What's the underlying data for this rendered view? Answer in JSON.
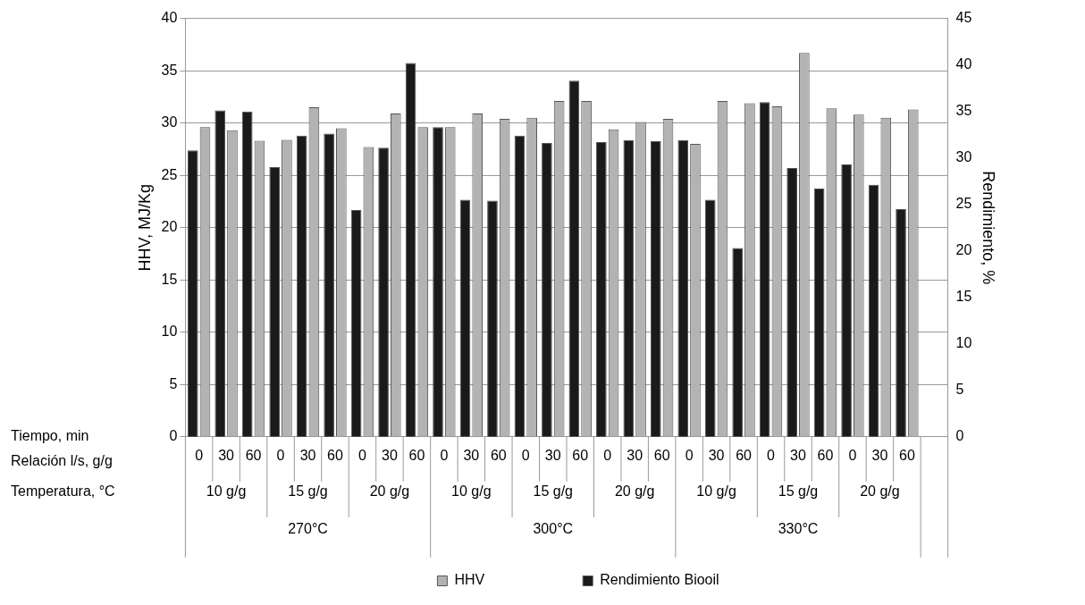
{
  "chart_data": {
    "type": "bar",
    "ylabel": "HHV, MJ/Kg",
    "y2label": "Rendimiento, %",
    "categories": [
      "0",
      "30",
      "60",
      "0",
      "30",
      "60",
      "0",
      "30",
      "60",
      "0",
      "30",
      "60",
      "0",
      "30",
      "60",
      "0",
      "30",
      "60",
      "0",
      "30",
      "60",
      "0",
      "30",
      "60",
      "0",
      "30",
      "60",
      null
    ],
    "series": [
      {
        "name": "HHV",
        "color": "#b3b3b3",
        "values": [
          29.6,
          29.3,
          28.3,
          28.4,
          31.5,
          29.5,
          27.7,
          30.9,
          29.6,
          29.6,
          30.9,
          30.4,
          30.5,
          32.1,
          32.1,
          29.4,
          30.1,
          30.4,
          28.0,
          32.1,
          31.9,
          31.6,
          36.7,
          31.4,
          30.8,
          30.5,
          31.3,
          null
        ]
      },
      {
        "name": "Rendimiento Biooil",
        "color": "#1a1a1a",
        "axis": "y2",
        "values": [
          30.8,
          35.1,
          35.0,
          29.0,
          32.4,
          32.6,
          24.4,
          31.1,
          40.2,
          33.3,
          25.5,
          25.4,
          32.4,
          31.6,
          38.3,
          31.7,
          31.9,
          31.8,
          31.9,
          25.5,
          20.3,
          36.0,
          28.9,
          26.7,
          29.3,
          27.1,
          24.5,
          null
        ]
      }
    ],
    "ylim": [
      0,
      40
    ],
    "yticks": [
      0,
      5,
      10,
      15,
      20,
      25,
      30,
      35,
      40
    ],
    "y2lim": [
      0,
      45
    ],
    "y2ticks": [
      0,
      5,
      10,
      15,
      20,
      25,
      30,
      35,
      40,
      45
    ],
    "grid": "y",
    "legend": "bottom",
    "annotations": [
      "Tiempo, min",
      "Relación l/s, g/g",
      "Temperatura, °C",
      "10 g/g",
      "15 g/g",
      "20 g/g",
      "10 g/g",
      "15 g/g",
      "20 g/g",
      "10 g/g",
      "15 g/g",
      "20 g/g",
      "270°C",
      "300°C",
      "330°C"
    ]
  }
}
